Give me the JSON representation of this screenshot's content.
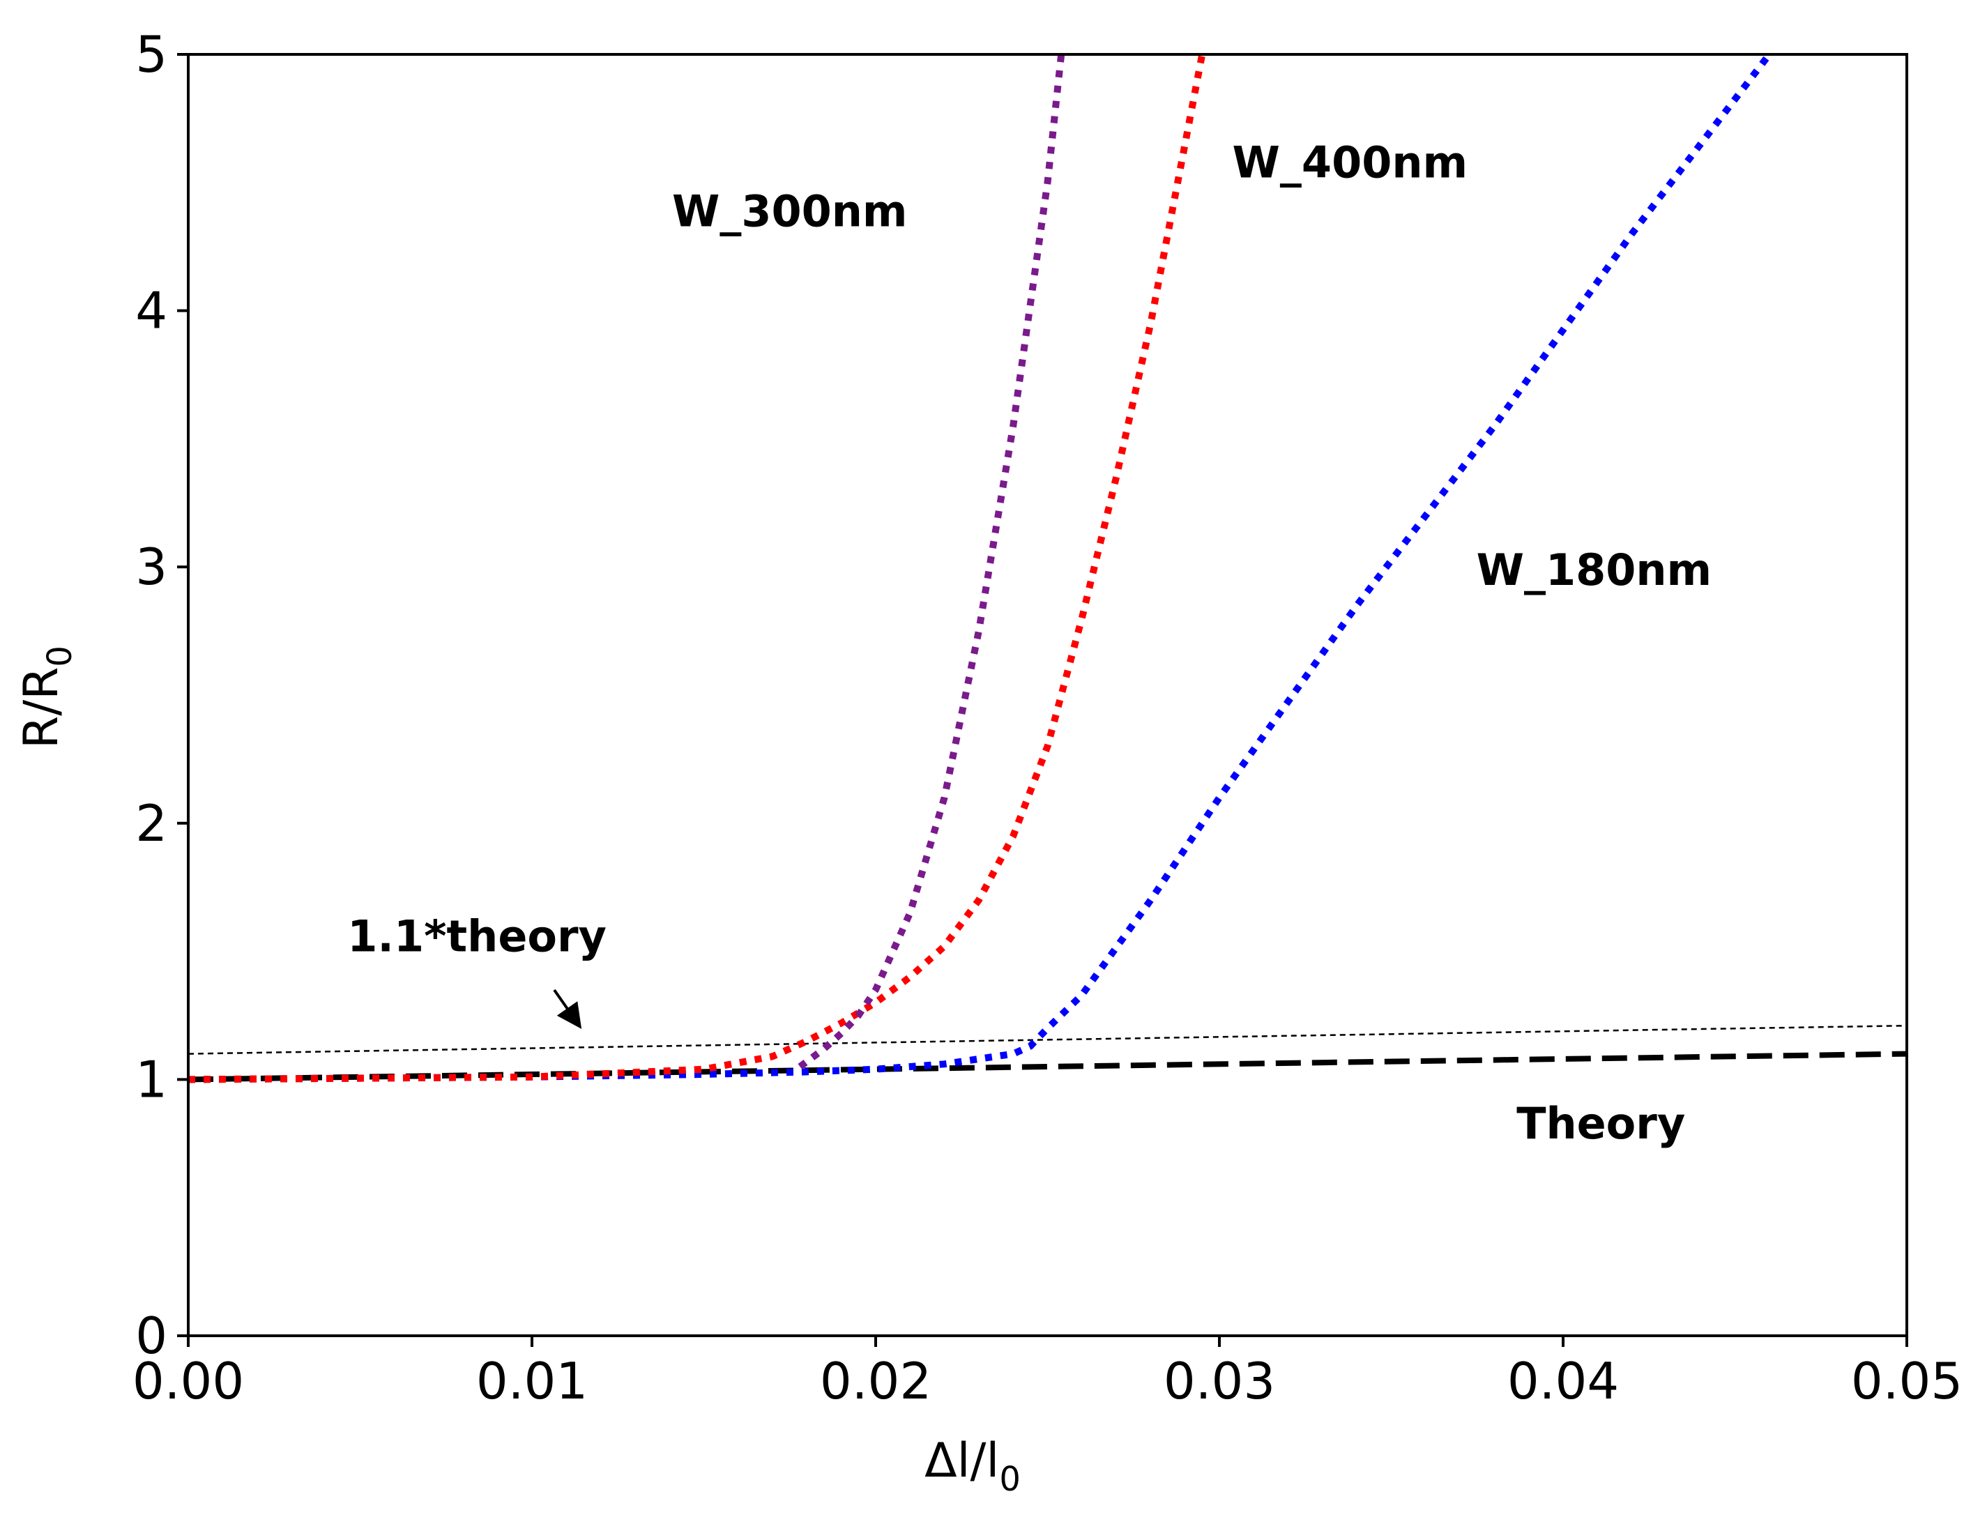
{
  "chart_data": {
    "type": "line",
    "title": "",
    "xlabel": {
      "main": "Δl/l",
      "sub": "0"
    },
    "ylabel": {
      "main": "R/R",
      "sub": "0"
    },
    "xlim": [
      0.0,
      0.05
    ],
    "ylim": [
      0,
      5
    ],
    "xticks": [
      "0.00",
      "0.01",
      "0.02",
      "0.03",
      "0.04",
      "0.05"
    ],
    "yticks": [
      "0",
      "1",
      "2",
      "3",
      "4",
      "5"
    ],
    "grid": false,
    "series": [
      {
        "name": "Theory",
        "color": "#000000",
        "style": "dashed",
        "x": [
          0.0,
          0.05
        ],
        "y": [
          1.0,
          1.1
        ]
      },
      {
        "name": "1.1*theory",
        "color": "#000000",
        "style": "thin-dashed",
        "x": [
          0.0,
          0.05
        ],
        "y": [
          1.1,
          1.21
        ]
      },
      {
        "name": "W_180nm",
        "color": "#0000ff",
        "style": "dotted",
        "x": [
          0.0,
          0.005,
          0.01,
          0.015,
          0.018,
          0.02,
          0.022,
          0.024,
          0.0245,
          0.025,
          0.026,
          0.028,
          0.03,
          0.034,
          0.038,
          0.042,
          0.046
        ],
        "y": [
          1.0,
          1.005,
          1.01,
          1.02,
          1.03,
          1.04,
          1.06,
          1.1,
          1.13,
          1.2,
          1.33,
          1.7,
          2.1,
          2.85,
          3.55,
          4.3,
          5.0
        ]
      },
      {
        "name": "W_400nm",
        "color": "#ff0000",
        "style": "dotted",
        "x": [
          0.0,
          0.005,
          0.01,
          0.015,
          0.017,
          0.018,
          0.019,
          0.02,
          0.021,
          0.022,
          0.023,
          0.024,
          0.025,
          0.026,
          0.027,
          0.028,
          0.029,
          0.0295
        ],
        "y": [
          1.0,
          1.005,
          1.01,
          1.04,
          1.09,
          1.15,
          1.22,
          1.3,
          1.4,
          1.52,
          1.7,
          1.95,
          2.3,
          2.8,
          3.35,
          3.95,
          4.65,
          5.0
        ]
      },
      {
        "name": "W_300nm",
        "color": "#7a1a8c",
        "style": "dotted",
        "x": [
          0.0178,
          0.0185,
          0.019,
          0.0195,
          0.02,
          0.021,
          0.022,
          0.023,
          0.024,
          0.025,
          0.0254
        ],
        "y": [
          1.05,
          1.12,
          1.18,
          1.25,
          1.35,
          1.65,
          2.1,
          2.75,
          3.55,
          4.5,
          5.0
        ]
      }
    ],
    "annotations": [
      {
        "text": "W_300nm",
        "x": 0.0175,
        "y": 4.33
      },
      {
        "text": "W_400nm",
        "x": 0.0338,
        "y": 4.52
      },
      {
        "text": "W_180nm",
        "x": 0.0409,
        "y": 2.93
      },
      {
        "text": "Theory",
        "x": 0.0411,
        "y": 0.77
      },
      {
        "text": "1.1*theory",
        "x": 0.0084,
        "y": 1.5
      }
    ]
  }
}
